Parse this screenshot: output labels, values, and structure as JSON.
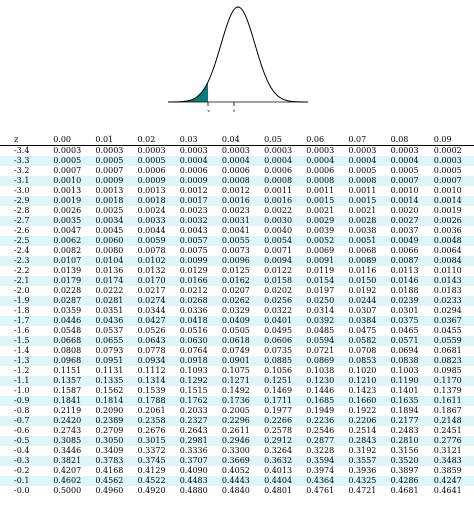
{
  "figure": {
    "labels": [
      "-z",
      "0"
    ],
    "colors": {
      "curve": "#000000",
      "shade": "#0d7c7c"
    }
  },
  "table": {
    "header": [
      "z",
      "0.00",
      "0.01",
      "0.02",
      "0.03",
      "0.04",
      "0.05",
      "0.06",
      "0.07",
      "0.08",
      "0.09"
    ],
    "rows": [
      [
        "-3.4",
        "0.0003",
        "0.0003",
        "0.0003",
        "0.0003",
        "0.0003",
        "0.0003",
        "0.0003",
        "0.0003",
        "0.0003",
        "0.0002"
      ],
      [
        "-3.3",
        "0.0005",
        "0.0005",
        "0.0005",
        "0.0004",
        "0.0004",
        "0.0004",
        "0.0004",
        "0.0004",
        "0.0004",
        "0.0003"
      ],
      [
        "-3.2",
        "0.0007",
        "0.0007",
        "0.0006",
        "0.0006",
        "0.0006",
        "0.0006",
        "0.0006",
        "0.0005",
        "0.0005",
        "0.0005"
      ],
      [
        "-3.1",
        "0.0010",
        "0.0009",
        "0.0009",
        "0.0009",
        "0.0008",
        "0.0008",
        "0.0008",
        "0.0008",
        "0.0007",
        "0.0007"
      ],
      [
        "-3.0",
        "0.0013",
        "0.0013",
        "0.0013",
        "0.0012",
        "0.0012",
        "0.0011",
        "0.0011",
        "0.0011",
        "0.0010",
        "0.0010"
      ],
      [
        "-2.9",
        "0.0019",
        "0.0018",
        "0.0018",
        "0.0017",
        "0.0016",
        "0.0016",
        "0.0015",
        "0.0015",
        "0.0014",
        "0.0014"
      ],
      [
        "-2.8",
        "0.0026",
        "0.0025",
        "0.0024",
        "0.0023",
        "0.0023",
        "0.0022",
        "0.0021",
        "0.0021",
        "0.0020",
        "0.0019"
      ],
      [
        "-2.7",
        "0.0035",
        "0.0034",
        "0.0033",
        "0.0032",
        "0.0031",
        "0.0030",
        "0.0029",
        "0.0028",
        "0.0027",
        "0.0026"
      ],
      [
        "-2.6",
        "0.0047",
        "0.0045",
        "0.0044",
        "0.0043",
        "0.0041",
        "0.0040",
        "0.0039",
        "0.0038",
        "0.0037",
        "0.0036"
      ],
      [
        "-2.5",
        "0.0062",
        "0.0060",
        "0.0059",
        "0.0057",
        "0.0055",
        "0.0054",
        "0.0052",
        "0.0051",
        "0.0049",
        "0.0048"
      ],
      [
        "-2.4",
        "0.0082",
        "0.0080",
        "0.0078",
        "0.0075",
        "0.0073",
        "0.0071",
        "0.0069",
        "0.0068",
        "0.0066",
        "0.0064"
      ],
      [
        "-2.3",
        "0.0107",
        "0.0104",
        "0.0102",
        "0.0099",
        "0.0096",
        "0.0094",
        "0.0091",
        "0.0089",
        "0.0087",
        "0.0084"
      ],
      [
        "-2.2",
        "0.0139",
        "0.0136",
        "0.0132",
        "0.0129",
        "0.0125",
        "0.0122",
        "0.0119",
        "0.0116",
        "0.0113",
        "0.0110"
      ],
      [
        "-2.1",
        "0.0179",
        "0.0174",
        "0.0170",
        "0.0166",
        "0.0162",
        "0.0158",
        "0.0154",
        "0.0150",
        "0.0146",
        "0.0143"
      ],
      [
        "-2.0",
        "0.0228",
        "0.0222",
        "0.0217",
        "0.0212",
        "0.0207",
        "0.0202",
        "0.0197",
        "0.0192",
        "0.0188",
        "0.0183"
      ],
      [
        "-1.9",
        "0.0287",
        "0.0281",
        "0.0274",
        "0.0268",
        "0.0262",
        "0.0256",
        "0.0250",
        "0.0244",
        "0.0239",
        "0.0233"
      ],
      [
        "-1.8",
        "0.0359",
        "0.0351",
        "0.0344",
        "0.0336",
        "0.0329",
        "0.0322",
        "0.0314",
        "0.0307",
        "0.0301",
        "0.0294"
      ],
      [
        "-1.7",
        "0.0446",
        "0.0436",
        "0.0427",
        "0.0418",
        "0.0409",
        "0.0401",
        "0.0392",
        "0.0384",
        "0.0375",
        "0.0367"
      ],
      [
        "-1.6",
        "0.0548",
        "0.0537",
        "0.0526",
        "0.0516",
        "0.0505",
        "0.0495",
        "0.0485",
        "0.0475",
        "0.0465",
        "0.0455"
      ],
      [
        "-1.5",
        "0.0668",
        "0.0655",
        "0.0643",
        "0.0630",
        "0.0618",
        "0.0606",
        "0.0594",
        "0.0582",
        "0.0571",
        "0.0559"
      ],
      [
        "-1.4",
        "0.0808",
        "0.0793",
        "0.0778",
        "0.0764",
        "0.0749",
        "0.0735",
        "0.0721",
        "0.0708",
        "0.0694",
        "0.0681"
      ],
      [
        "-1.3",
        "0.0968",
        "0.0951",
        "0.0934",
        "0.0918",
        "0.0901",
        "0.0885",
        "0.0869",
        "0.0853",
        "0.0838",
        "0.0823"
      ],
      [
        "-1.2",
        "0.1151",
        "0.1131",
        "0.1112",
        "0.1093",
        "0.1075",
        "0.1056",
        "0.1038",
        "0.1020",
        "0.1003",
        "0.0985"
      ],
      [
        "-1.1",
        "0.1357",
        "0.1335",
        "0.1314",
        "0.1292",
        "0.1271",
        "0.1251",
        "0.1230",
        "0.1210",
        "0.1190",
        "0.1170"
      ],
      [
        "-1.0",
        "0.1587",
        "0.1562",
        "0.1539",
        "0.1515",
        "0.1492",
        "0.1469",
        "0.1446",
        "0.1423",
        "0.1401",
        "0.1379"
      ],
      [
        "-0.9",
        "0.1841",
        "0.1814",
        "0.1788",
        "0.1762",
        "0.1736",
        "0.1711",
        "0.1685",
        "0.1660",
        "0.1635",
        "0.1611"
      ],
      [
        "-0.8",
        "0.2119",
        "0.2090",
        "0.2061",
        "0.2033",
        "0.2005",
        "0.1977",
        "0.1949",
        "0.1922",
        "0.1894",
        "0.1867"
      ],
      [
        "-0.7",
        "0.2420",
        "0.2389",
        "0.2358",
        "0.2327",
        "0.2296",
        "0.2266",
        "0.2236",
        "0.2206",
        "0.2177",
        "0.2148"
      ],
      [
        "-0.6",
        "0.2743",
        "0.2709",
        "0.2676",
        "0.2643",
        "0.2611",
        "0.2578",
        "0.2546",
        "0.2514",
        "0.2483",
        "0.2451"
      ],
      [
        "-0.5",
        "0.3085",
        "0.3050",
        "0.3015",
        "0.2981",
        "0.2946",
        "0.2912",
        "0.2877",
        "0.2843",
        "0.2810",
        "0.2776"
      ],
      [
        "-0.4",
        "0.3446",
        "0.3409",
        "0.3372",
        "0.3336",
        "0.3300",
        "0.3264",
        "0.3228",
        "0.3192",
        "0.3156",
        "0.3121"
      ],
      [
        "-0.3",
        "0.3821",
        "0.3783",
        "0.3745",
        "0.3707",
        "0.3669",
        "0.3632",
        "0.3594",
        "0.3557",
        "0.3520",
        "0.3483"
      ],
      [
        "-0.2",
        "0.4207",
        "0.4168",
        "0.4129",
        "0.4090",
        "0.4052",
        "0.4013",
        "0.3974",
        "0.3936",
        "0.3897",
        "0.3859"
      ],
      [
        "-0.1",
        "0.4602",
        "0.4562",
        "0.4522",
        "0.4483",
        "0.4443",
        "0.4404",
        "0.4364",
        "0.4325",
        "0.4286",
        "0.4247"
      ],
      [
        "-0.0",
        "0.5000",
        "0.4960",
        "0.4920",
        "0.4880",
        "0.4840",
        "0.4801",
        "0.4761",
        "0.4721",
        "0.4681",
        "0.4641"
      ]
    ]
  }
}
